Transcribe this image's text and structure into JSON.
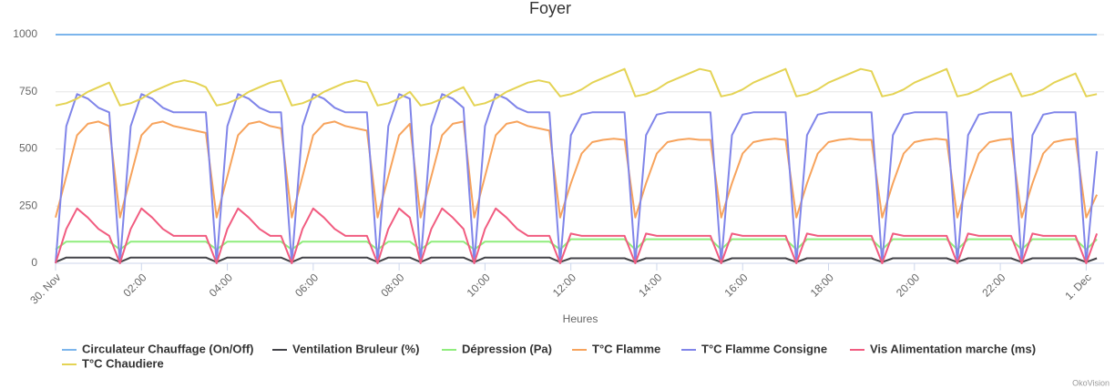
{
  "chart_data": {
    "type": "line",
    "title": "Foyer",
    "x_label": "Heures",
    "credit": "OkoVision",
    "x": [
      0,
      15,
      30,
      45,
      60,
      75,
      90,
      105,
      120,
      135,
      150,
      165,
      180,
      195,
      210,
      225,
      240,
      255,
      270,
      285,
      300,
      315,
      330,
      345,
      360,
      375,
      390,
      405,
      420,
      435,
      450,
      465,
      480,
      495,
      510,
      525,
      540,
      555,
      570,
      585,
      600,
      615,
      630,
      645,
      660,
      675,
      690,
      705,
      720,
      735,
      750,
      765,
      780,
      795,
      810,
      825,
      840,
      855,
      870,
      885,
      900,
      915,
      930,
      945,
      960,
      975,
      990,
      1005,
      1020,
      1035,
      1050,
      1065,
      1080,
      1095,
      1110,
      1125,
      1140,
      1155,
      1170,
      1185,
      1200,
      1215,
      1230,
      1245,
      1260,
      1275,
      1290,
      1305,
      1320,
      1335,
      1350,
      1365,
      1380,
      1395,
      1410,
      1425,
      1440,
      1455
    ],
    "xlim": [
      0,
      1465
    ],
    "xticks": [
      {
        "value": 0,
        "label": "30. Nov"
      },
      {
        "value": 120,
        "label": "02:00"
      },
      {
        "value": 240,
        "label": "04:00"
      },
      {
        "value": 360,
        "label": "06:00"
      },
      {
        "value": 480,
        "label": "08:00"
      },
      {
        "value": 600,
        "label": "10:00"
      },
      {
        "value": 720,
        "label": "12:00"
      },
      {
        "value": 840,
        "label": "14:00"
      },
      {
        "value": 960,
        "label": "16:00"
      },
      {
        "value": 1080,
        "label": "18:00"
      },
      {
        "value": 1200,
        "label": "20:00"
      },
      {
        "value": 1320,
        "label": "22:00"
      },
      {
        "value": 1440,
        "label": "1. Dec"
      }
    ],
    "ylim": [
      0,
      1000
    ],
    "yticks": [
      0,
      250,
      500,
      750,
      1000
    ],
    "grid": true,
    "series": [
      {
        "name": "Circulateur Chauffage (On/Off)",
        "color": "#7cb5ec",
        "values": [
          1000,
          1000,
          1000,
          1000,
          1000,
          1000,
          1000,
          1000,
          1000,
          1000,
          1000,
          1000,
          1000,
          1000,
          1000,
          1000,
          1000,
          1000,
          1000,
          1000,
          1000,
          1000,
          1000,
          1000,
          1000,
          1000,
          1000,
          1000,
          1000,
          1000,
          1000,
          1000,
          1000,
          1000,
          1000,
          1000,
          1000,
          1000,
          1000,
          1000,
          1000,
          1000,
          1000,
          1000,
          1000,
          1000,
          1000,
          1000,
          1000,
          1000,
          1000,
          1000,
          1000,
          1000,
          1000,
          1000,
          1000,
          1000,
          1000,
          1000,
          1000,
          1000,
          1000,
          1000,
          1000,
          1000,
          1000,
          1000,
          1000,
          1000,
          1000,
          1000,
          1000,
          1000,
          1000,
          1000,
          1000,
          1000,
          1000,
          1000,
          1000,
          1000,
          1000,
          1000,
          1000,
          1000,
          1000,
          1000,
          1000,
          1000,
          1000,
          1000,
          1000,
          1000,
          1000,
          1000,
          1000,
          1000
        ]
      },
      {
        "name": "Ventilation Bruleur (%)",
        "color": "#434348",
        "values": [
          5,
          25,
          25,
          25,
          25,
          25,
          5,
          25,
          25,
          25,
          25,
          25,
          25,
          25,
          25,
          5,
          25,
          25,
          25,
          25,
          25,
          25,
          5,
          25,
          25,
          25,
          25,
          25,
          25,
          25,
          5,
          25,
          25,
          25,
          5,
          25,
          25,
          25,
          25,
          5,
          25,
          25,
          25,
          25,
          25,
          25,
          25,
          5,
          22,
          22,
          22,
          22,
          22,
          22,
          5,
          22,
          22,
          22,
          22,
          22,
          22,
          22,
          5,
          22,
          22,
          22,
          22,
          22,
          22,
          5,
          22,
          22,
          22,
          22,
          22,
          22,
          22,
          5,
          22,
          22,
          22,
          22,
          22,
          22,
          5,
          22,
          22,
          22,
          22,
          22,
          5,
          22,
          22,
          22,
          22,
          22,
          5,
          22
        ]
      },
      {
        "name": "Dépression (Pa)",
        "color": "#90ed7d",
        "values": [
          60,
          95,
          95,
          95,
          95,
          95,
          60,
          95,
          95,
          95,
          95,
          95,
          95,
          95,
          95,
          60,
          95,
          95,
          95,
          95,
          95,
          95,
          60,
          95,
          95,
          95,
          95,
          95,
          95,
          95,
          60,
          95,
          95,
          95,
          60,
          95,
          95,
          95,
          95,
          60,
          95,
          95,
          95,
          95,
          95,
          95,
          95,
          60,
          105,
          105,
          105,
          105,
          105,
          105,
          60,
          105,
          105,
          105,
          105,
          105,
          105,
          105,
          60,
          105,
          105,
          105,
          105,
          105,
          105,
          60,
          105,
          105,
          105,
          105,
          105,
          105,
          105,
          60,
          105,
          105,
          105,
          105,
          105,
          105,
          60,
          105,
          105,
          105,
          105,
          105,
          60,
          105,
          105,
          105,
          105,
          105,
          60,
          105
        ]
      },
      {
        "name": "T°C Flamme",
        "color": "#f7a35c",
        "values": [
          200,
          380,
          560,
          610,
          620,
          600,
          200,
          380,
          560,
          610,
          620,
          600,
          590,
          580,
          570,
          200,
          380,
          560,
          610,
          620,
          600,
          590,
          200,
          380,
          560,
          610,
          620,
          600,
          590,
          580,
          200,
          380,
          560,
          610,
          200,
          380,
          560,
          610,
          620,
          200,
          380,
          560,
          610,
          620,
          600,
          590,
          580,
          200,
          350,
          480,
          530,
          540,
          545,
          540,
          200,
          350,
          480,
          530,
          540,
          545,
          540,
          540,
          200,
          350,
          480,
          530,
          540,
          545,
          540,
          200,
          350,
          480,
          530,
          540,
          545,
          540,
          540,
          200,
          350,
          480,
          530,
          540,
          545,
          540,
          200,
          350,
          480,
          530,
          540,
          545,
          200,
          350,
          480,
          530,
          540,
          545,
          200,
          300
        ]
      },
      {
        "name": "T°C Flamme Consigne",
        "color": "#8085e9",
        "values": [
          0,
          600,
          740,
          720,
          680,
          660,
          0,
          600,
          740,
          720,
          680,
          660,
          660,
          660,
          660,
          0,
          600,
          740,
          720,
          680,
          660,
          660,
          0,
          600,
          740,
          720,
          680,
          660,
          660,
          660,
          0,
          600,
          740,
          720,
          0,
          600,
          740,
          720,
          680,
          0,
          600,
          740,
          720,
          680,
          660,
          660,
          660,
          0,
          560,
          650,
          660,
          660,
          660,
          660,
          0,
          560,
          650,
          660,
          660,
          660,
          660,
          660,
          0,
          560,
          650,
          660,
          660,
          660,
          660,
          0,
          560,
          650,
          660,
          660,
          660,
          660,
          660,
          0,
          560,
          650,
          660,
          660,
          660,
          660,
          0,
          560,
          650,
          660,
          660,
          660,
          0,
          560,
          650,
          660,
          660,
          660,
          0,
          490
        ]
      },
      {
        "name": "Vis Alimentation marche (ms)",
        "color": "#f15c80",
        "values": [
          0,
          150,
          240,
          200,
          150,
          120,
          0,
          150,
          240,
          200,
          150,
          120,
          120,
          120,
          120,
          0,
          150,
          240,
          200,
          150,
          120,
          120,
          0,
          150,
          240,
          200,
          150,
          120,
          120,
          120,
          0,
          150,
          240,
          200,
          0,
          150,
          240,
          200,
          150,
          0,
          150,
          240,
          200,
          150,
          120,
          120,
          120,
          0,
          130,
          120,
          120,
          120,
          120,
          120,
          0,
          130,
          120,
          120,
          120,
          120,
          120,
          120,
          0,
          130,
          120,
          120,
          120,
          120,
          120,
          0,
          130,
          120,
          120,
          120,
          120,
          120,
          120,
          0,
          130,
          120,
          120,
          120,
          120,
          120,
          0,
          130,
          120,
          120,
          120,
          120,
          0,
          130,
          120,
          120,
          120,
          120,
          0,
          130
        ]
      },
      {
        "name": "T°C Chaudiere",
        "color": "#e4d354",
        "values": [
          690,
          700,
          720,
          750,
          770,
          790,
          690,
          700,
          720,
          750,
          770,
          790,
          800,
          790,
          770,
          690,
          700,
          720,
          750,
          770,
          790,
          800,
          690,
          700,
          720,
          750,
          770,
          790,
          800,
          790,
          690,
          700,
          720,
          750,
          690,
          700,
          720,
          750,
          770,
          690,
          700,
          720,
          750,
          770,
          790,
          800,
          790,
          730,
          740,
          760,
          790,
          810,
          830,
          850,
          730,
          740,
          760,
          790,
          810,
          830,
          850,
          840,
          730,
          740,
          760,
          790,
          810,
          830,
          850,
          730,
          740,
          760,
          790,
          810,
          830,
          850,
          840,
          730,
          740,
          760,
          790,
          810,
          830,
          850,
          730,
          740,
          760,
          790,
          810,
          830,
          730,
          740,
          760,
          790,
          810,
          830,
          730,
          740
        ]
      }
    ]
  }
}
